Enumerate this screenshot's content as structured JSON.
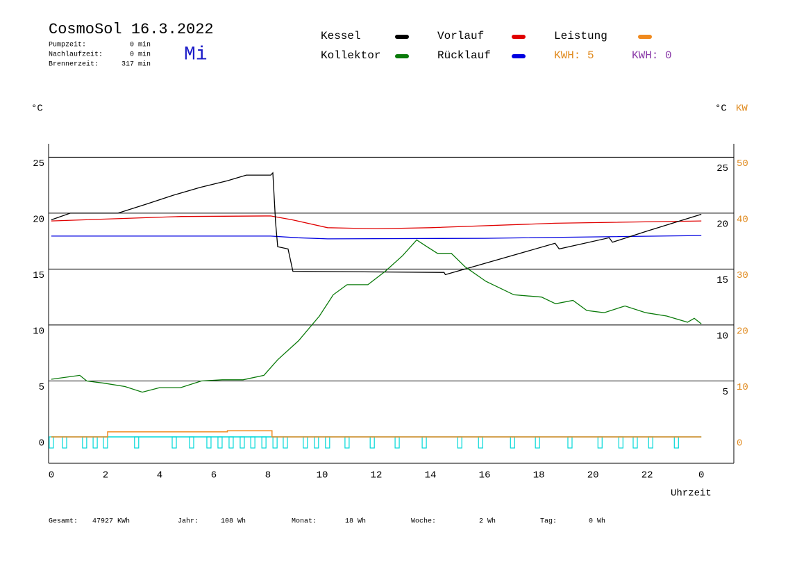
{
  "header": {
    "title": "CosmoSol 16.3.2022",
    "weekday": "Mi",
    "stats": [
      {
        "label": "Pumpzeit:",
        "value": "0 min"
      },
      {
        "label": "Nachlaufzeit:",
        "value": "0 min"
      },
      {
        "label": "Brennerzeit:",
        "value": "317 min"
      }
    ],
    "kwh": [
      "KWH: 5",
      "KWH: 0"
    ]
  },
  "footer": [
    {
      "label": "Gesamt:",
      "value": "47927 KWh"
    },
    {
      "label": "Jahr:",
      "value": "108 Wh"
    },
    {
      "label": "Monat:",
      "value": "18 Wh"
    },
    {
      "label": "Woche:",
      "value": "2 Wh"
    },
    {
      "label": "Tag:",
      "value": "0 Wh"
    }
  ],
  "chart_data": {
    "type": "line",
    "y_label": "°C",
    "y_right_label": "°C",
    "y2_label": "KW",
    "x_label": "Uhrzeit",
    "xlim": [
      -0.1,
      25.2
    ],
    "xticks": [
      0,
      2,
      4,
      6,
      8,
      10,
      12,
      14,
      16,
      18,
      20,
      22,
      {
        "value": 24,
        "label": "0"
      }
    ],
    "ylim": [
      -2.36,
      26.2
    ],
    "yticks": [
      0,
      5,
      10,
      15,
      20,
      25
    ],
    "y_right_ticks": [
      5,
      10,
      15,
      20,
      25
    ],
    "y2lim": [
      -4.72,
      52.4
    ],
    "y2ticks": [
      0,
      10,
      20,
      30,
      40,
      50
    ],
    "grid": true,
    "series": [
      {
        "name": "Kessel",
        "color": "#000000",
        "x": [
          0,
          0.7,
          2.46,
          3.5,
          4.5,
          5.5,
          6.5,
          7.2,
          8.1,
          8.18,
          8.28,
          8.36,
          8.74,
          8.92,
          14.5,
          14.55,
          16,
          17,
          18.6,
          18.75,
          20.6,
          20.72,
          22,
          24
        ],
        "values": [
          19.4,
          20.0,
          20.0,
          20.8,
          21.6,
          22.3,
          22.9,
          23.4,
          23.4,
          23.6,
          19.2,
          17.0,
          16.8,
          14.8,
          14.7,
          14.5,
          15.5,
          16.2,
          17.3,
          16.8,
          17.8,
          17.4,
          18.4,
          19.9
        ]
      },
      {
        "name": "Kollektor",
        "color": "#0a7a0a",
        "x": [
          0,
          1.05,
          1.31,
          1.95,
          2.72,
          3.36,
          4.0,
          4.77,
          5.54,
          6.31,
          7.08,
          7.85,
          8.36,
          9.13,
          9.9,
          10.41,
          10.92,
          11.69,
          12.33,
          12.97,
          13.49,
          13.87,
          14.26,
          14.77,
          15.28,
          16.05,
          17.08,
          18.1,
          18.62,
          19.26,
          19.77,
          20.41,
          21.18,
          21.95,
          22.72,
          23.49,
          23.74,
          24
        ],
        "values": [
          5.15,
          5.5,
          5.0,
          4.8,
          4.5,
          4.0,
          4.4,
          4.4,
          5.0,
          5.1,
          5.1,
          5.5,
          6.9,
          8.6,
          10.8,
          12.7,
          13.6,
          13.6,
          14.8,
          16.2,
          17.6,
          17.0,
          16.4,
          16.4,
          15.2,
          13.9,
          12.7,
          12.5,
          11.9,
          12.2,
          11.3,
          11.1,
          11.7,
          11.1,
          10.8,
          10.25,
          10.6,
          10.1
        ]
      },
      {
        "name": "Vorlauf",
        "color": "#e00000",
        "x": [
          0,
          4.8,
          8.1,
          8.9,
          10.2,
          12,
          14,
          18.6,
          24
        ],
        "values": [
          19.3,
          19.7,
          19.75,
          19.4,
          18.7,
          18.6,
          18.7,
          19.1,
          19.3
        ]
      },
      {
        "name": "Rücklauf",
        "color": "#0000e0",
        "x": [
          0,
          8.1,
          9.1,
          10.2,
          16,
          24
        ],
        "values": [
          17.95,
          17.95,
          17.8,
          17.7,
          17.75,
          18.0
        ]
      },
      {
        "name": "Leistung",
        "color": "#f08a1e",
        "axis": "y2",
        "x": [
          0,
          2.08,
          2.08,
          6.5,
          6.5,
          8.15,
          8.15,
          24
        ],
        "values": [
          0,
          0,
          0.9,
          0.9,
          1.1,
          1.1,
          0,
          0
        ]
      }
    ],
    "pulses": {
      "color": "#00d8d8",
      "x": [
        0,
        0.49,
        1.23,
        1.62,
        2.0,
        3.15,
        4.54,
        5.18,
        5.82,
        6.23,
        6.64,
        7.05,
        7.44,
        7.85,
        8.26,
        8.64,
        9.38,
        9.79,
        10.2,
        10.92,
        11.85,
        12.77,
        13.77,
        15.08,
        15.85,
        17.03,
        17.95,
        19.15,
        20.26,
        21.03,
        21.56,
        22.13,
        23.08
      ]
    }
  }
}
